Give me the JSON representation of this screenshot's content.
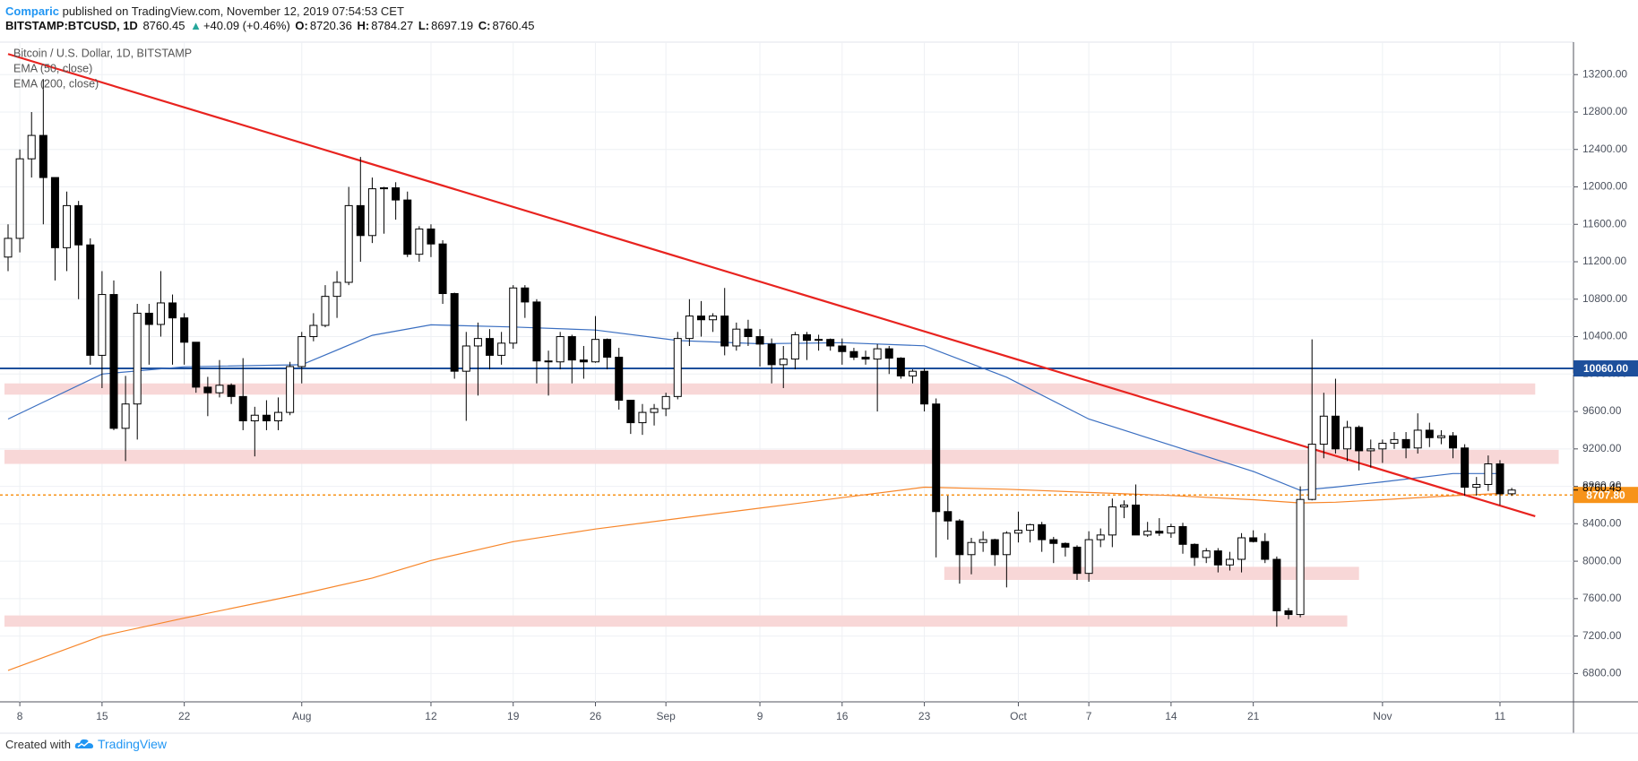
{
  "header": {
    "author": "Comparic",
    "published": "published on TradingView.com, November 12, 2019 07:54:53 CET",
    "symbol": "BITSTAMP:BTCUSD, 1D",
    "last": "8760.45",
    "arrow": "▲",
    "change": "+40.09 (+0.46%)",
    "ohlc": [
      {
        "label": "O:",
        "value": "8720.36"
      },
      {
        "label": "H:",
        "value": "8784.27"
      },
      {
        "label": "L:",
        "value": "8697.19"
      },
      {
        "label": "C:",
        "value": "8760.45"
      }
    ]
  },
  "footer": {
    "text": "Created with",
    "brand": "TradingView"
  },
  "chart_data": {
    "type": "candlestick",
    "title": "Bitcoin / U.S. Dollar, 1D, BITSTAMP",
    "up_color": "#ffffff",
    "down_color": "#000000",
    "wick_color": "#000000",
    "categories": [
      "Jul 7",
      "Jul 8",
      "Jul 9",
      "Jul 10",
      "Jul 11",
      "Jul 12",
      "Jul 13",
      "Jul 14",
      "Jul 15",
      "Jul 16",
      "Jul 17",
      "Jul 18",
      "Jul 19",
      "Jul 20",
      "Jul 21",
      "Jul 22",
      "Jul 23",
      "Jul 24",
      "Jul 25",
      "Jul 26",
      "Jul 27",
      "Jul 28",
      "Jul 29",
      "Jul 30",
      "Jul 31",
      "Aug 1",
      "Aug 2",
      "Aug 3",
      "Aug 4",
      "Aug 5",
      "Aug 6",
      "Aug 7",
      "Aug 8",
      "Aug 9",
      "Aug 10",
      "Aug 11",
      "Aug 12",
      "Aug 13",
      "Aug 14",
      "Aug 15",
      "Aug 16",
      "Aug 17",
      "Aug 18",
      "Aug 19",
      "Aug 20",
      "Aug 21",
      "Aug 22",
      "Aug 23",
      "Aug 24",
      "Aug 25",
      "Aug 26",
      "Aug 27",
      "Aug 28",
      "Aug 29",
      "Aug 30",
      "Aug 31",
      "Sep 1",
      "Sep 2",
      "Sep 3",
      "Sep 4",
      "Sep 5",
      "Sep 6",
      "Sep 7",
      "Sep 8",
      "Sep 9",
      "Sep 10",
      "Sep 11",
      "Sep 12",
      "Sep 13",
      "Sep 14",
      "Sep 15",
      "Sep 16",
      "Sep 17",
      "Sep 18",
      "Sep 19",
      "Sep 20",
      "Sep 21",
      "Sep 22",
      "Sep 23",
      "Sep 24",
      "Sep 25",
      "Sep 26",
      "Sep 27",
      "Sep 28",
      "Sep 29",
      "Sep 30",
      "Oct 1",
      "Oct 2",
      "Oct 3",
      "Oct 4",
      "Oct 5",
      "Oct 6",
      "Oct 7",
      "Oct 8",
      "Oct 9",
      "Oct 10",
      "Oct 11",
      "Oct 12",
      "Oct 13",
      "Oct 14",
      "Oct 15",
      "Oct 16",
      "Oct 17",
      "Oct 18",
      "Oct 19",
      "Oct 20",
      "Oct 21",
      "Oct 22",
      "Oct 23",
      "Oct 24",
      "Oct 25",
      "Oct 26",
      "Oct 27",
      "Oct 28",
      "Oct 29",
      "Oct 30",
      "Oct 31",
      "Nov 1",
      "Nov 2",
      "Nov 3",
      "Nov 4",
      "Nov 5",
      "Nov 6",
      "Nov 7",
      "Nov 8",
      "Nov 9",
      "Nov 10",
      "Nov 11",
      "Nov 12"
    ],
    "open": [
      11250,
      11450,
      12300,
      12550,
      12100,
      11350,
      11800,
      11380,
      10200,
      10850,
      9420,
      9680,
      10650,
      10530,
      10760,
      10600,
      10340,
      9860,
      9800,
      9880,
      9760,
      9500,
      9560,
      9500,
      9590,
      10080,
      10400,
      10520,
      10830,
      10980,
      11800,
      11480,
      11980,
      11990,
      11860,
      11280,
      11550,
      11390,
      10860,
      10030,
      10300,
      10380,
      10200,
      10330,
      10920,
      10770,
      10140,
      10130,
      10400,
      10150,
      10130,
      10370,
      10180,
      9720,
      9480,
      9590,
      9630,
      9760,
      10380,
      10620,
      10580,
      10620,
      10300,
      10480,
      10400,
      10320,
      10100,
      10160,
      10420,
      10360,
      10370,
      10300,
      10240,
      10180,
      10160,
      10270,
      10170,
      9980,
      10030,
      9680,
      8530,
      8430,
      8070,
      8200,
      8230,
      8070,
      8300,
      8330,
      8390,
      8230,
      8190,
      8150,
      7870,
      8230,
      8280,
      8580,
      8600,
      8280,
      8320,
      8300,
      8370,
      8180,
      8040,
      8110,
      7960,
      8020,
      8250,
      8210,
      8020,
      7470,
      7430,
      8660,
      9250,
      9550,
      9200,
      9430,
      9180,
      9200,
      9260,
      9300,
      9210,
      9400,
      9320,
      9340,
      9210,
      8790,
      8820,
      9040,
      8720.36
    ],
    "high": [
      11600,
      12400,
      12800,
      13150,
      12100,
      11950,
      11850,
      11450,
      11100,
      11000,
      9980,
      10750,
      10750,
      11100,
      10850,
      10650,
      10340,
      9970,
      10150,
      9900,
      10170,
      9650,
      9720,
      9750,
      10130,
      10450,
      10650,
      10950,
      11100,
      12000,
      12320,
      12100,
      12000,
      12050,
      11950,
      11580,
      11600,
      11430,
      10870,
      10450,
      10550,
      10480,
      10450,
      10950,
      10950,
      10800,
      10250,
      10450,
      10420,
      10300,
      10620,
      10380,
      10280,
      9720,
      9680,
      9680,
      9800,
      10450,
      10800,
      10780,
      10650,
      10920,
      10550,
      10580,
      10480,
      10380,
      10300,
      10450,
      10450,
      10420,
      10380,
      10380,
      10280,
      10250,
      10320,
      10300,
      10180,
      10050,
      10060,
      9740,
      8700,
      8450,
      8250,
      8320,
      8240,
      8320,
      8530,
      8400,
      8420,
      8260,
      8200,
      8170,
      8320,
      8350,
      8670,
      8650,
      8820,
      8420,
      8460,
      8400,
      8410,
      8190,
      8140,
      8140,
      8100,
      8300,
      8330,
      8300,
      8050,
      7500,
      8800,
      10370,
      9800,
      9950,
      9500,
      9450,
      9300,
      9300,
      9380,
      9380,
      9580,
      9480,
      9400,
      9380,
      9250,
      8900,
      9130,
      9080,
      8784.27
    ],
    "low": [
      11100,
      11300,
      12100,
      11600,
      11000,
      11100,
      10800,
      10100,
      9850,
      9400,
      9070,
      9300,
      10100,
      10400,
      10100,
      10100,
      9800,
      9550,
      9750,
      9680,
      9400,
      9120,
      9400,
      9400,
      9560,
      9900,
      10350,
      10500,
      10600,
      10950,
      11200,
      11400,
      11500,
      11650,
      11250,
      11200,
      11250,
      10750,
      9950,
      9500,
      9770,
      10050,
      10100,
      10270,
      10600,
      9900,
      9770,
      10050,
      9900,
      9950,
      10120,
      10050,
      9620,
      9360,
      9350,
      9450,
      9550,
      9730,
      10300,
      10400,
      10450,
      10200,
      10250,
      10300,
      10080,
      9900,
      9850,
      10050,
      10150,
      10250,
      10250,
      10100,
      10150,
      10100,
      9600,
      10000,
      9950,
      9900,
      9600,
      8040,
      8230,
      7760,
      7860,
      8100,
      7950,
      7720,
      8200,
      8200,
      8100,
      7980,
      8050,
      7800,
      7780,
      8150,
      8150,
      8460,
      8300,
      8260,
      8270,
      8250,
      8080,
      7950,
      7980,
      7880,
      7900,
      7880,
      8200,
      7980,
      7300,
      7380,
      7400,
      8650,
      9100,
      9150,
      9070,
      8970,
      9000,
      9050,
      9200,
      9100,
      9150,
      9220,
      9250,
      9100,
      8700,
      8700,
      8750,
      8600,
      8697.19
    ],
    "close": [
      11450,
      12300,
      12550,
      12100,
      11350,
      11800,
      11380,
      10200,
      10850,
      9420,
      9680,
      10650,
      10530,
      10760,
      10600,
      10340,
      9860,
      9800,
      9880,
      9760,
      9500,
      9560,
      9500,
      9590,
      10080,
      10400,
      10520,
      10830,
      10980,
      11800,
      11480,
      11980,
      11990,
      11860,
      11280,
      11550,
      11390,
      10860,
      10030,
      10300,
      10380,
      10200,
      10330,
      10920,
      10770,
      10140,
      10130,
      10400,
      10150,
      10130,
      10370,
      10180,
      9720,
      9480,
      9590,
      9630,
      9760,
      10380,
      10620,
      10580,
      10620,
      10300,
      10480,
      10400,
      10320,
      10100,
      10160,
      10420,
      10360,
      10370,
      10300,
      10240,
      10180,
      10160,
      10270,
      10170,
      9980,
      10030,
      9680,
      8530,
      8430,
      8070,
      8200,
      8230,
      8070,
      8300,
      8330,
      8390,
      8230,
      8190,
      8150,
      7870,
      8230,
      8280,
      8580,
      8600,
      8280,
      8320,
      8300,
      8370,
      8180,
      8040,
      8110,
      7960,
      8020,
      8250,
      8210,
      8020,
      7470,
      7430,
      8660,
      9250,
      9550,
      9200,
      9430,
      9180,
      9200,
      9260,
      9300,
      9210,
      9400,
      9320,
      9340,
      9210,
      8790,
      8820,
      9040,
      8720,
      8760.45
    ],
    "series": [
      {
        "name": "EMA (50, close)",
        "color": "#3b6fc1",
        "x": [
          "Jul 7",
          "Jul 15",
          "Jul 22",
          "Aug 1",
          "Aug 7",
          "Aug 12",
          "Aug 19",
          "Aug 26",
          "Sep 2",
          "Sep 9",
          "Sep 16",
          "Sep 23",
          "Sep 30",
          "Oct 7",
          "Oct 14",
          "Oct 21",
          "Oct 25",
          "Oct 28",
          "Nov 1",
          "Nov 7",
          "Nov 11"
        ],
        "values": [
          9519,
          10000,
          10078,
          10100,
          10414,
          10526,
          10503,
          10470,
          10358,
          10324,
          10335,
          10302,
          9966,
          9519,
          9239,
          8959,
          8758,
          8792,
          8848,
          8937,
          8937
        ]
      },
      {
        "name": "EMA (200, close)",
        "color": "#f7862a",
        "x": [
          "Jul 7",
          "Jul 15",
          "Jul 22",
          "Aug 1",
          "Aug 7",
          "Aug 12",
          "Aug 19",
          "Aug 26",
          "Sep 2",
          "Sep 9",
          "Sep 16",
          "Sep 23",
          "Sep 30",
          "Oct 7",
          "Oct 14",
          "Oct 21",
          "Oct 25",
          "Oct 28",
          "Nov 1",
          "Nov 7",
          "Nov 11"
        ],
        "values": [
          6833,
          7202,
          7392,
          7650,
          7820,
          8008,
          8209,
          8344,
          8456,
          8567,
          8679,
          8791,
          8769,
          8735,
          8702,
          8657,
          8623,
          8630,
          8657,
          8700,
          8724
        ]
      }
    ],
    "trendline": {
      "color": "#e8231f",
      "x": [
        "Jul 7",
        "Nov 14"
      ],
      "values": [
        13420,
        8480
      ]
    },
    "zones": {
      "color": "#f8d7d7",
      "items": [
        {
          "from": "Jul 7",
          "to": "Nov 14",
          "low": 9780,
          "high": 9900
        },
        {
          "from": "Jul 7",
          "to": "Nov 16",
          "low": 9040,
          "high": 9190
        },
        {
          "from": "Sep 25",
          "to": "Oct 30",
          "low": 7800,
          "high": 7940
        },
        {
          "from": "Jul 7",
          "to": "Oct 29",
          "low": 7300,
          "high": 7420
        }
      ]
    },
    "price_lines": [
      {
        "value": 10060,
        "label": "10060.00",
        "color": "#1d4f9b",
        "style": "solid"
      },
      {
        "value": 8707.8,
        "label": "8707.80",
        "color": "#f7931a",
        "style": "dotted"
      }
    ],
    "last_price": {
      "value": 8760.45,
      "label": "8760.45"
    },
    "ylim": [
      6497,
      13547
    ],
    "yticks": [
      {
        "value": 6800,
        "label": "6800.00"
      },
      {
        "value": 7200,
        "label": "7200.00"
      },
      {
        "value": 7600,
        "label": "7600.00"
      },
      {
        "value": 8000,
        "label": "8000.00"
      },
      {
        "value": 8400,
        "label": "8400.00"
      },
      {
        "value": 8800,
        "label": "8800.00"
      },
      {
        "value": 9200,
        "label": "9200.00"
      },
      {
        "value": 9600,
        "label": "9600.00"
      },
      {
        "value": 10000,
        "label": "10000.00"
      },
      {
        "value": 10400,
        "label": "10400.00"
      },
      {
        "value": 10800,
        "label": "10800.00"
      },
      {
        "value": 11200,
        "label": "11200.00"
      },
      {
        "value": 11600,
        "label": "11600.00"
      },
      {
        "value": 12000,
        "label": "12000.00"
      },
      {
        "value": 12400,
        "label": "12400.00"
      },
      {
        "value": 12800,
        "label": "12800.00"
      },
      {
        "value": 13200,
        "label": "13200.00"
      }
    ],
    "xticks": [
      {
        "value": "Jul 8",
        "label": "8"
      },
      {
        "value": "Jul 15",
        "label": "15"
      },
      {
        "value": "Jul 22",
        "label": "22"
      },
      {
        "value": "Aug 1",
        "label": "Aug"
      },
      {
        "value": "Aug 12",
        "label": "12"
      },
      {
        "value": "Aug 19",
        "label": "19"
      },
      {
        "value": "Aug 26",
        "label": "26"
      },
      {
        "value": "Sep 1",
        "label": "Sep"
      },
      {
        "value": "Sep 9",
        "label": "9"
      },
      {
        "value": "Sep 16",
        "label": "16"
      },
      {
        "value": "Sep 23",
        "label": "23"
      },
      {
        "value": "Oct 1",
        "label": "Oct"
      },
      {
        "value": "Oct 7",
        "label": "7"
      },
      {
        "value": "Oct 14",
        "label": "14"
      },
      {
        "value": "Oct 21",
        "label": "21"
      },
      {
        "value": "Nov 1",
        "label": "Nov"
      },
      {
        "value": "Nov 11",
        "label": "11"
      }
    ],
    "grid": true
  }
}
